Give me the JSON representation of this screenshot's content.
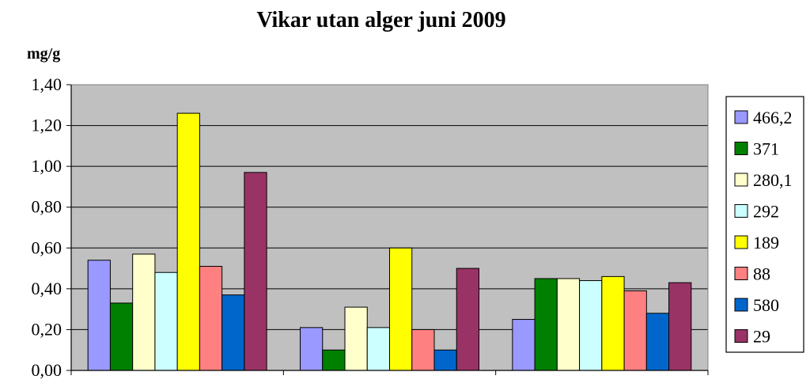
{
  "chart_data": {
    "type": "bar",
    "title": "Vikar utan alger juni 2009",
    "ylabel": "mg/g",
    "xlabel": "",
    "ylim": [
      0,
      1.4
    ],
    "yticks": [
      "0,00",
      "0,20",
      "0,40",
      "0,60",
      "0,80",
      "1,00",
      "1,20",
      "1,40"
    ],
    "grid": true,
    "legend_position": "right",
    "plot_background": "#c0c0c0",
    "groups": 3,
    "series": [
      {
        "name": "466,2",
        "color": "#9999ff",
        "values": [
          0.54,
          0.21,
          0.25
        ]
      },
      {
        "name": "371",
        "color": "#008000",
        "values": [
          0.33,
          0.1,
          0.45
        ]
      },
      {
        "name": "280,1",
        "color": "#ffffcc",
        "values": [
          0.57,
          0.31,
          0.45
        ]
      },
      {
        "name": "292",
        "color": "#ccffff",
        "values": [
          0.48,
          0.21,
          0.44
        ]
      },
      {
        "name": "189",
        "color": "#ffff00",
        "values": [
          1.26,
          0.6,
          0.46
        ]
      },
      {
        "name": "88",
        "color": "#ff8080",
        "values": [
          0.51,
          0.2,
          0.39
        ]
      },
      {
        "name": "580",
        "color": "#0066cc",
        "values": [
          0.37,
          0.1,
          0.28
        ]
      },
      {
        "name": "29",
        "color": "#993366",
        "values": [
          0.97,
          0.5,
          0.43
        ]
      }
    ]
  }
}
